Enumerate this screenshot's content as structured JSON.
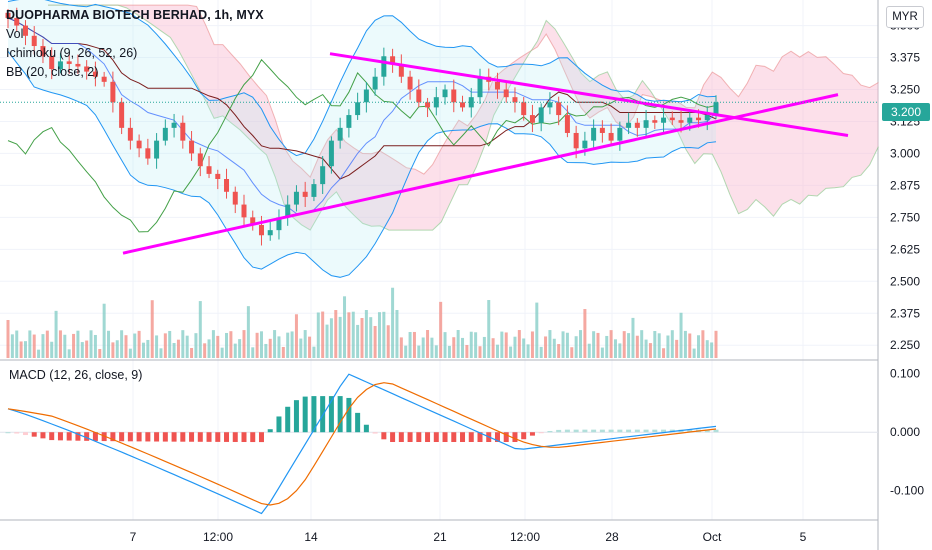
{
  "legend": {
    "symbol": "DUOPHARMA BIOTECH BERHAD, 1h, MYX",
    "vol": "Vol",
    "ichimoku": "Ichimoku (9, 26, 52, 26)",
    "bb": "BB (20, close, 2)",
    "macd": "MACD (12, 26, close, 9)"
  },
  "currency_button": "MYR",
  "last_price_label": "3.200",
  "colors": {
    "up": "#26a69a",
    "down": "#ef5350",
    "trendline": "#ff00ff",
    "bb": "#2196f3",
    "kijun": "#7b1e1e",
    "tenkan": "#2962ff",
    "chikou": "#43a047",
    "cloud_bull": "#a5d6a7",
    "cloud_bear": "#f8bbd0",
    "macd_line": "#2196f3",
    "signal_line": "#ef6c00"
  },
  "chart_data": {
    "type": "candlestick",
    "timeframe": "1h",
    "price_axis": {
      "ticks": [
        "2.250",
        "2.375",
        "2.500",
        "2.625",
        "2.750",
        "2.875",
        "3.000",
        "3.125",
        "3.250",
        "3.375",
        "3.500"
      ],
      "range": [
        2.2,
        3.6
      ]
    },
    "macd_axis": {
      "ticks": [
        "0.100",
        "0.000",
        "-0.100"
      ],
      "range": [
        -0.15,
        0.12
      ]
    },
    "time_axis": [
      "7",
      "12:00",
      "14",
      "21",
      "12:00",
      "28",
      "Oct",
      "5"
    ],
    "last_price": 3.2,
    "close_series": [
      3.53,
      3.5,
      3.46,
      3.42,
      3.38,
      3.33,
      3.36,
      3.35,
      3.34,
      3.32,
      3.3,
      3.28,
      3.2,
      3.1,
      3.05,
      3.02,
      2.98,
      3.05,
      3.1,
      3.12,
      3.05,
      3.0,
      2.95,
      2.92,
      2.9,
      2.85,
      2.8,
      2.75,
      2.72,
      2.68,
      2.7,
      2.75,
      2.8,
      2.85,
      2.83,
      2.88,
      2.95,
      3.05,
      3.1,
      3.15,
      3.2,
      3.25,
      3.3,
      3.38,
      3.35,
      3.3,
      3.25,
      3.2,
      3.18,
      3.22,
      3.25,
      3.2,
      3.18,
      3.22,
      3.3,
      3.28,
      3.25,
      3.22,
      3.2,
      3.15,
      3.12,
      3.18,
      3.2,
      3.15,
      3.08,
      3.02,
      3.05,
      3.1,
      3.08,
      3.05,
      3.1,
      3.12,
      3.1,
      3.13,
      3.12,
      3.14,
      3.13,
      3.12,
      3.14,
      3.13,
      3.15,
      3.2
    ],
    "trendlines": [
      {
        "name": "upper",
        "start": 3.39,
        "end": 3.07
      },
      {
        "name": "lower",
        "start": 2.61,
        "end": 3.23
      }
    ]
  }
}
